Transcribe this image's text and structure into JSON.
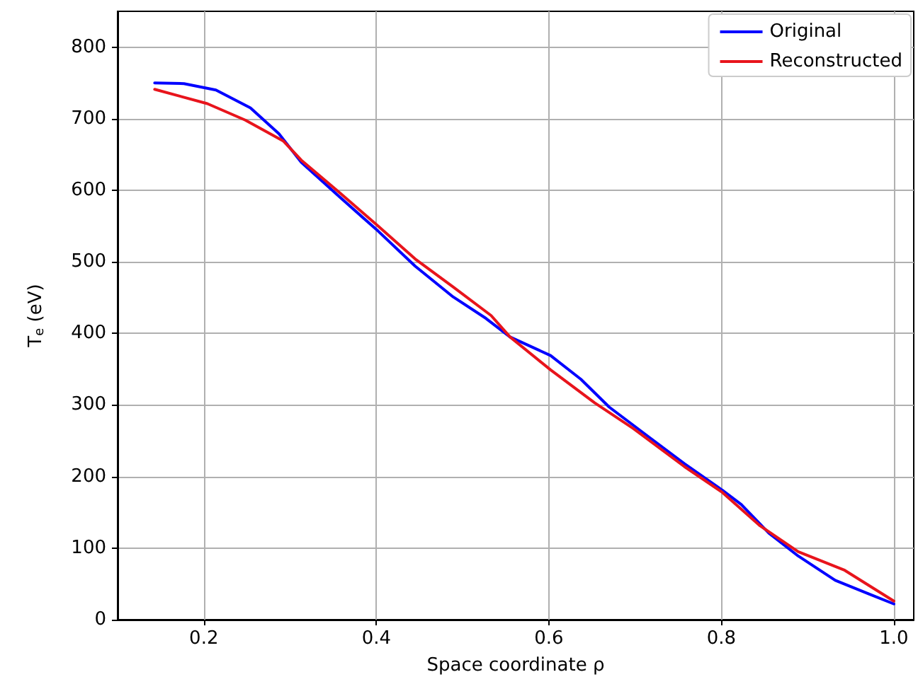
{
  "chart_data": {
    "type": "line",
    "xlabel": "Space coordinate ρ",
    "ylabel": "T$_{e}$ (eV)",
    "xlim": [
      0.1,
      1.023
    ],
    "ylim": [
      0,
      850
    ],
    "xticks": [
      0.2,
      0.4,
      0.6,
      0.8,
      {
        "value": 1,
        "label": "1.0"
      }
    ],
    "yticks": [
      0,
      100,
      200,
      300,
      400,
      500,
      600,
      700,
      800
    ],
    "grid": true,
    "legend": "top right",
    "line_style": "solid",
    "marker": "none",
    "series": [
      {
        "name": "Original",
        "color": "#0000ff",
        "x": [
          0.143,
          0.177,
          0.214,
          0.254,
          0.287,
          0.313,
          0.358,
          0.402,
          0.445,
          0.489,
          0.527,
          0.555,
          0.602,
          0.637,
          0.67,
          0.714,
          0.757,
          0.801,
          0.823,
          0.855,
          0.889,
          0.932,
          0.971,
          1.0
        ],
        "values": [
          750,
          749,
          740,
          715,
          679,
          639,
          590,
          543,
          494,
          451,
          421,
          395,
          369,
          336,
          297,
          257,
          218,
          181,
          161,
          121,
          89,
          55,
          36,
          22
        ]
      },
      {
        "name": "Reconstructed",
        "color": "#e8141c",
        "x": [
          0.143,
          0.204,
          0.248,
          0.292,
          0.313,
          0.358,
          0.402,
          0.445,
          0.489,
          0.533,
          0.555,
          0.602,
          0.653,
          0.698,
          0.757,
          0.801,
          0.845,
          0.889,
          0.943,
          1.0
        ],
        "values": [
          741,
          721,
          698,
          669,
          642,
          596,
          550,
          504,
          465,
          425,
          395,
          349,
          303,
          267,
          214,
          178,
          131,
          95,
          69,
          26
        ]
      }
    ]
  }
}
